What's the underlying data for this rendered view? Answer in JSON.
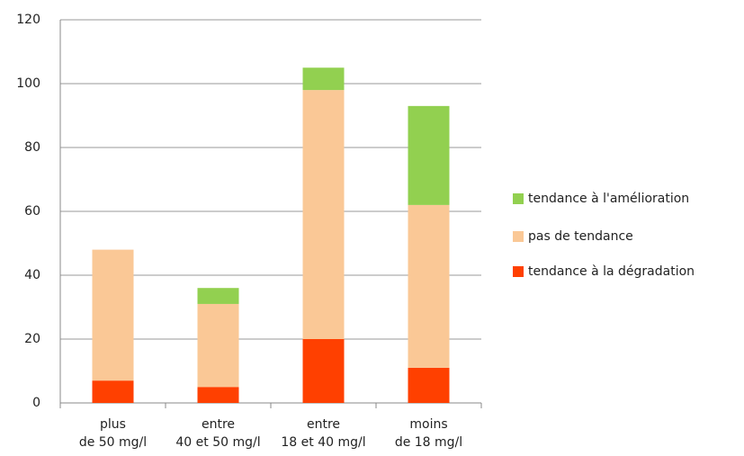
{
  "chart_data": {
    "type": "stacked_bar",
    "categories": [
      "plus\nde 50 mg/l",
      "entre\n40 et 50 mg/l",
      "entre\n18 et 40 mg/l",
      "moins\nde 18 mg/l"
    ],
    "series": [
      {
        "name": "tendance à la dégradation",
        "color": "#ff4000",
        "values": [
          7,
          5,
          20,
          11
        ]
      },
      {
        "name": "pas de tendance",
        "color": "#fac896",
        "values": [
          41,
          26,
          78,
          51
        ]
      },
      {
        "name": "tendance à l'amélioration",
        "color": "#92d050",
        "values": [
          null,
          5,
          7,
          31
        ]
      }
    ],
    "ylim": [
      0,
      120
    ],
    "yticks": [
      0,
      20,
      40,
      60,
      80,
      100,
      120
    ],
    "grid": true,
    "legend": "right"
  }
}
